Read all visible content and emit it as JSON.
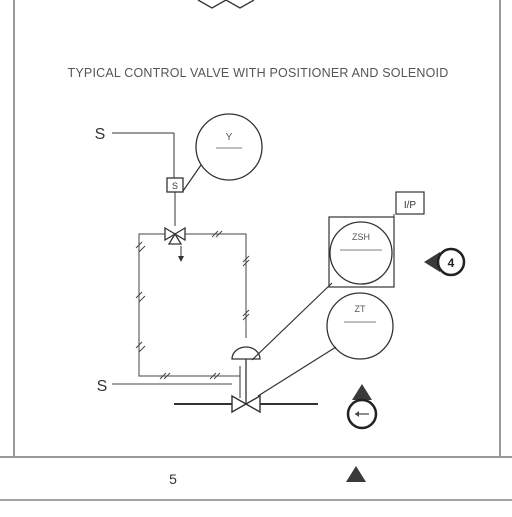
{
  "drawing": {
    "title": "TYPICAL CONTROL VALVE WITH POSITIONER AND SOLENOID",
    "signal_label_top": "S",
    "signal_label_bottom": "S",
    "solenoid_label": "S",
    "instrument_top_label": "Y",
    "positioner_bubble_label": "ZSH",
    "ip_box_label": "I/P",
    "position_bubble_label": "ZT",
    "callout_number": "4",
    "callout_arrow_label": "",
    "footer_page_number": "5"
  },
  "colors": {
    "line": "#2b2b2b",
    "background": "#ffffff",
    "accent_triangle": "#3a3a3a"
  },
  "icons": {
    "footer_marker": "triangle-up-icon",
    "callout_left": "pointer-left-circle-icon",
    "callout_up": "pointer-up-circle-icon"
  }
}
